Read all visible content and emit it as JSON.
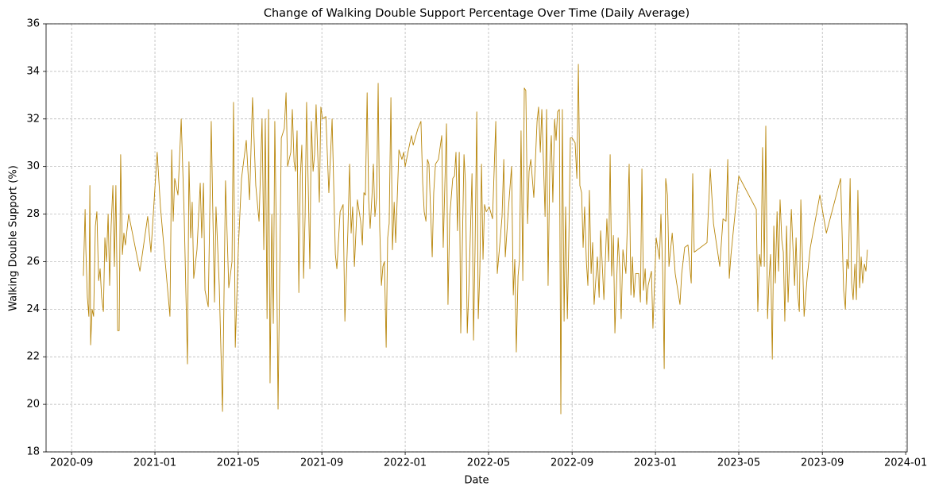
{
  "chart_data": {
    "type": "line",
    "title": "Change of Walking Double Support Percentage Over Time (Daily Average)",
    "x_label": "Date",
    "y_label": "Walking Double Support (%)",
    "color": "#b8860b",
    "grid": true,
    "xlim": [
      2020.565,
      2024.006
    ],
    "ylim": [
      18,
      36
    ],
    "xticks": [
      {
        "value": 2020.667,
        "label": "2020-09"
      },
      {
        "value": 2021.0,
        "label": "2021-01"
      },
      {
        "value": 2021.333,
        "label": "2021-05"
      },
      {
        "value": 2021.667,
        "label": "2021-09"
      },
      {
        "value": 2022.0,
        "label": "2022-01"
      },
      {
        "value": 2022.333,
        "label": "2022-05"
      },
      {
        "value": 2022.667,
        "label": "2022-09"
      },
      {
        "value": 2023.0,
        "label": "2023-01"
      },
      {
        "value": 2023.333,
        "label": "2023-05"
      },
      {
        "value": 2023.667,
        "label": "2023-09"
      },
      {
        "value": 2024.0,
        "label": "2024-01"
      }
    ],
    "yticks": [
      18,
      20,
      22,
      24,
      26,
      28,
      30,
      32,
      34,
      36
    ],
    "x": [
      2020.714,
      2020.721,
      2020.724,
      2020.73,
      2020.736,
      2020.74,
      2020.743,
      2020.749,
      2020.755,
      2020.762,
      2020.768,
      2020.775,
      2020.781,
      2020.787,
      2020.794,
      2020.8,
      2020.806,
      2020.813,
      2020.819,
      2020.825,
      2020.832,
      2020.838,
      2020.844,
      2020.851,
      2020.857,
      2020.863,
      2020.87,
      2020.876,
      2020.882,
      2020.895,
      2020.94,
      2020.971,
      2020.984,
      2020.997,
      2021.009,
      2021.022,
      2021.06,
      2021.067,
      2021.073,
      2021.079,
      2021.092,
      2021.105,
      2021.117,
      2021.13,
      2021.136,
      2021.143,
      2021.149,
      2021.155,
      2021.168,
      2021.181,
      2021.187,
      2021.194,
      2021.2,
      2021.213,
      2021.225,
      2021.232,
      2021.238,
      2021.244,
      2021.257,
      2021.27,
      2021.282,
      2021.295,
      2021.308,
      2021.314,
      2021.321,
      2021.333,
      2021.346,
      2021.352,
      2021.365,
      2021.378,
      2021.39,
      2021.403,
      2021.416,
      2021.428,
      2021.435,
      2021.441,
      2021.448,
      2021.454,
      2021.46,
      2021.467,
      2021.473,
      2021.479,
      2021.486,
      2021.492,
      2021.505,
      2021.517,
      2021.524,
      2021.53,
      2021.543,
      2021.549,
      2021.556,
      2021.562,
      2021.568,
      2021.575,
      2021.581,
      2021.587,
      2021.594,
      2021.6,
      2021.606,
      2021.619,
      2021.625,
      2021.632,
      2021.638,
      2021.644,
      2021.657,
      2021.663,
      2021.67,
      2021.683,
      2021.695,
      2021.708,
      2021.721,
      2021.727,
      2021.74,
      2021.752,
      2021.759,
      2021.771,
      2021.778,
      2021.784,
      2021.79,
      2021.797,
      2021.809,
      2021.822,
      2021.829,
      2021.835,
      2021.841,
      2021.848,
      2021.854,
      2021.86,
      2021.867,
      2021.873,
      2021.879,
      2021.886,
      2021.892,
      2021.898,
      2021.905,
      2021.911,
      2021.917,
      2021.924,
      2021.93,
      2021.936,
      2021.943,
      2021.949,
      2021.956,
      2021.962,
      2021.975,
      2021.987,
      2021.994,
      2022.0,
      2022.013,
      2022.025,
      2022.032,
      2022.051,
      2022.063,
      2022.07,
      2022.076,
      2022.083,
      2022.089,
      2022.095,
      2022.108,
      2022.114,
      2022.121,
      2022.133,
      2022.146,
      2022.152,
      2022.159,
      2022.165,
      2022.171,
      2022.178,
      2022.19,
      2022.197,
      2022.203,
      2022.209,
      2022.216,
      2022.222,
      2022.235,
      2022.241,
      2022.248,
      2022.254,
      2022.267,
      2022.273,
      2022.279,
      2022.286,
      2022.292,
      2022.298,
      2022.305,
      2022.311,
      2022.317,
      2022.324,
      2022.336,
      2022.349,
      2022.362,
      2022.368,
      2022.381,
      2022.387,
      2022.394,
      2022.4,
      2022.413,
      2022.425,
      2022.432,
      2022.438,
      2022.444,
      2022.451,
      2022.457,
      2022.463,
      2022.47,
      2022.476,
      2022.482,
      2022.489,
      2022.495,
      2022.502,
      2022.514,
      2022.527,
      2022.533,
      2022.54,
      2022.546,
      2022.559,
      2022.565,
      2022.571,
      2022.578,
      2022.584,
      2022.59,
      2022.597,
      2022.603,
      2022.609,
      2022.616,
      2022.622,
      2022.628,
      2022.635,
      2022.641,
      2022.648,
      2022.654,
      2022.66,
      2022.667,
      2022.679,
      2022.686,
      2022.692,
      2022.698,
      2022.705,
      2022.711,
      2022.717,
      2022.724,
      2022.73,
      2022.736,
      2022.743,
      2022.749,
      2022.755,
      2022.768,
      2022.775,
      2022.781,
      2022.794,
      2022.806,
      2022.813,
      2022.819,
      2022.825,
      2022.832,
      2022.838,
      2022.851,
      2022.857,
      2022.863,
      2022.87,
      2022.882,
      2022.895,
      2022.902,
      2022.908,
      2022.914,
      2022.921,
      2022.933,
      2022.94,
      2022.946,
      2022.952,
      2022.959,
      2022.965,
      2022.971,
      2022.984,
      2022.99,
      2023.003,
      2023.016,
      2023.022,
      2023.029,
      2023.035,
      2023.041,
      2023.048,
      2023.054,
      2023.067,
      2023.079,
      2023.098,
      2023.105,
      2023.117,
      2023.13,
      2023.143,
      2023.149,
      2023.155,
      2023.206,
      2023.219,
      2023.232,
      2023.257,
      2023.27,
      2023.282,
      2023.289,
      2023.295,
      2023.302,
      2023.333,
      2023.403,
      2023.409,
      2023.416,
      2023.422,
      2023.428,
      2023.435,
      2023.441,
      2023.448,
      2023.454,
      2023.46,
      2023.467,
      2023.473,
      2023.479,
      2023.486,
      2023.492,
      2023.498,
      2023.505,
      2023.511,
      2023.517,
      2023.524,
      2023.53,
      2023.543,
      2023.556,
      2023.562,
      2023.568,
      2023.575,
      2023.581,
      2023.594,
      2023.606,
      2023.619,
      2023.657,
      2023.683,
      2023.74,
      2023.752,
      2023.759,
      2023.765,
      2023.771,
      2023.778,
      2023.784,
      2023.79,
      2023.797,
      2023.803,
      2023.809,
      2023.816,
      2023.822,
      2023.828,
      2023.835,
      2023.841,
      2023.847
    ],
    "values": [
      25.4,
      28.2,
      26.5,
      24.5,
      23.7,
      29.2,
      22.5,
      24,
      23.7,
      27.5,
      28.1,
      25.2,
      25.7,
      24.5,
      23.9,
      27,
      26,
      28,
      25,
      27.5,
      29.2,
      25.8,
      29.2,
      23.1,
      23.1,
      30.5,
      26.3,
      27.2,
      26.7,
      28,
      25.6,
      27.9,
      26.4,
      28.6,
      30.6,
      28.3,
      23.7,
      30.7,
      27.7,
      29.5,
      28.8,
      32,
      27.9,
      21.7,
      30.2,
      27,
      28.5,
      25.3,
      26.5,
      29.3,
      27,
      29.3,
      24.8,
      24.1,
      31.9,
      27.7,
      24.3,
      28.3,
      25,
      19.7,
      29.4,
      24.9,
      26,
      32.7,
      22.4,
      26.5,
      29.5,
      30,
      31.1,
      28.6,
      32.9,
      29.2,
      27.7,
      32,
      26.5,
      32,
      23.6,
      32.4,
      20.9,
      28,
      23.4,
      31.9,
      26.5,
      19.8,
      31.2,
      31.6,
      33.1,
      30,
      30.6,
      32.4,
      30.2,
      29.8,
      31.5,
      24.7,
      29.6,
      30.9,
      25.3,
      27.9,
      32.7,
      25.7,
      31.9,
      29.8,
      30.5,
      32.6,
      28.5,
      32.5,
      32,
      32.1,
      28.9,
      32,
      26.3,
      25.7,
      28.1,
      28.4,
      23.5,
      27.3,
      30.1,
      27.2,
      28.3,
      25.8,
      28.6,
      27.7,
      26.7,
      28.9,
      28.8,
      33.1,
      28.6,
      27.4,
      28.7,
      30.1,
      27.9,
      28.7,
      33.5,
      27.5,
      25,
      25.8,
      26,
      22.4,
      27,
      27.6,
      32.9,
      26.5,
      28.5,
      26.8,
      30.7,
      30.3,
      30.6,
      30,
      30.7,
      31.3,
      30.9,
      31.6,
      31.9,
      29.3,
      28.1,
      27.7,
      30.3,
      30.1,
      26.2,
      28.9,
      30.1,
      30.3,
      31.3,
      26.6,
      29.4,
      31.8,
      24.2,
      27.9,
      29.5,
      29.6,
      30.6,
      27.3,
      30.6,
      23,
      30.5,
      29.3,
      23,
      24.7,
      29.7,
      22.7,
      26.4,
      32.3,
      23.6,
      25.5,
      30.1,
      26.1,
      28.4,
      28.1,
      28.3,
      27.8,
      31.9,
      25.5,
      27.1,
      27.9,
      30.3,
      26.2,
      28.3,
      30,
      24.6,
      26.1,
      22.2,
      25.4,
      26.1,
      31.5,
      25.2,
      33.3,
      33.2,
      27.6,
      29.8,
      30.3,
      28.7,
      31.9,
      32.5,
      30.6,
      32.4,
      27.9,
      32.4,
      25,
      30.1,
      31.3,
      28.5,
      32,
      31.1,
      32.3,
      32.4,
      19.6,
      32.4,
      23.5,
      28.3,
      23.6,
      26.9,
      31.2,
      31.2,
      31,
      29.5,
      34.3,
      29.2,
      28.9,
      26.6,
      28.3,
      26,
      25,
      29,
      25.5,
      26.8,
      24.2,
      26.2,
      24.5,
      27.3,
      24.4,
      27.8,
      26,
      30.5,
      25.4,
      27.1,
      23,
      27,
      25.8,
      23.6,
      26.5,
      25.5,
      30.1,
      24.6,
      26.2,
      24.5,
      25.5,
      25.5,
      24.3,
      29.9,
      24.8,
      25.7,
      24.2,
      25,
      25.6,
      23.2,
      27,
      26.1,
      28,
      25.6,
      21.5,
      29.5,
      28.8,
      25.8,
      27.2,
      25.5,
      24.2,
      25.5,
      26.6,
      26.7,
      25.1,
      29.7,
      26.4,
      26.8,
      29.9,
      27.6,
      25.8,
      27.8,
      27.7,
      30.3,
      25.3,
      26.3,
      29.6,
      28.2,
      23.9,
      26.3,
      25.8,
      30.8,
      25.8,
      31.7,
      23.6,
      25.3,
      26.3,
      21.9,
      27.5,
      25.1,
      28.1,
      25.6,
      28.6,
      26.9,
      26.4,
      23.5,
      27.5,
      24.3,
      28.2,
      25,
      27,
      24.7,
      23.9,
      28.6,
      23.7,
      25.3,
      26.6,
      28.8,
      27.2,
      29.5,
      24.8,
      24,
      26.1,
      25.7,
      29.5,
      25.1,
      24.4,
      25.9,
      24.4,
      29,
      24.9,
      26.2,
      25.1,
      25.9,
      25.6,
      26.5
    ]
  }
}
